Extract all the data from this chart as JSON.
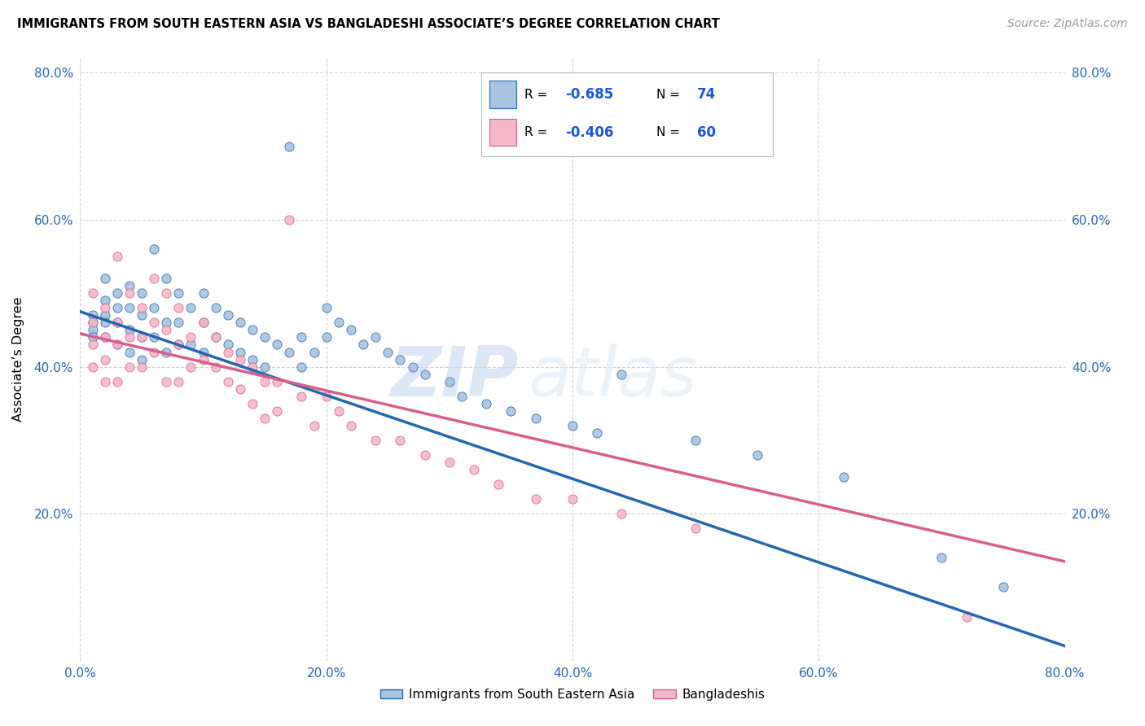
{
  "title": "IMMIGRANTS FROM SOUTH EASTERN ASIA VS BANGLADESHI ASSOCIATE’S DEGREE CORRELATION CHART",
  "source": "Source: ZipAtlas.com",
  "ylabel": "Associate’s Degree",
  "legend_labels": [
    "Immigrants from South Eastern Asia",
    "Bangladeshis"
  ],
  "blue_R": -0.685,
  "blue_N": 74,
  "pink_R": -0.406,
  "pink_N": 60,
  "blue_color": "#a8c4e0",
  "blue_line_color": "#2566b0",
  "pink_color": "#f4b8c8",
  "pink_line_color": "#d95f8a",
  "x_min": 0.0,
  "x_max": 0.8,
  "y_min": 0.0,
  "y_max": 0.82,
  "x_ticks": [
    0.0,
    0.2,
    0.4,
    0.6,
    0.8
  ],
  "x_tick_labels": [
    "0.0%",
    "",
    "",
    "",
    "80.0%"
  ],
  "y_ticks": [
    0.0,
    0.2,
    0.4,
    0.6,
    0.8
  ],
  "y_tick_labels": [
    "",
    "20.0%",
    "40.0%",
    "60.0%",
    "80.0%"
  ],
  "right_y_ticks": [
    0.2,
    0.4,
    0.6,
    0.8
  ],
  "right_y_tick_labels": [
    "20.0%",
    "40.0%",
    "60.0%",
    "80.0%"
  ],
  "watermark_zip": "ZIP",
  "watermark_atlas": "atlas",
  "grid_color": "#cccccc",
  "background_color": "#ffffff",
  "marker_size": 65,
  "legend_R_color": "#1a56db",
  "legend_N_color": "#1a56db",
  "blue_scatter_x": [
    0.01,
    0.01,
    0.01,
    0.01,
    0.02,
    0.02,
    0.02,
    0.02,
    0.02,
    0.03,
    0.03,
    0.03,
    0.03,
    0.04,
    0.04,
    0.04,
    0.04,
    0.05,
    0.05,
    0.05,
    0.05,
    0.06,
    0.06,
    0.06,
    0.07,
    0.07,
    0.07,
    0.08,
    0.08,
    0.08,
    0.09,
    0.09,
    0.1,
    0.1,
    0.1,
    0.11,
    0.11,
    0.12,
    0.12,
    0.13,
    0.13,
    0.14,
    0.14,
    0.15,
    0.15,
    0.16,
    0.17,
    0.17,
    0.18,
    0.18,
    0.19,
    0.2,
    0.2,
    0.21,
    0.22,
    0.23,
    0.24,
    0.25,
    0.26,
    0.27,
    0.28,
    0.3,
    0.31,
    0.33,
    0.35,
    0.37,
    0.4,
    0.42,
    0.44,
    0.5,
    0.55,
    0.62,
    0.7,
    0.75
  ],
  "blue_scatter_y": [
    0.47,
    0.46,
    0.45,
    0.44,
    0.52,
    0.49,
    0.47,
    0.46,
    0.44,
    0.5,
    0.48,
    0.46,
    0.43,
    0.51,
    0.48,
    0.45,
    0.42,
    0.5,
    0.47,
    0.44,
    0.41,
    0.56,
    0.48,
    0.44,
    0.52,
    0.46,
    0.42,
    0.5,
    0.46,
    0.43,
    0.48,
    0.43,
    0.5,
    0.46,
    0.42,
    0.48,
    0.44,
    0.47,
    0.43,
    0.46,
    0.42,
    0.45,
    0.41,
    0.44,
    0.4,
    0.43,
    0.7,
    0.42,
    0.44,
    0.4,
    0.42,
    0.48,
    0.44,
    0.46,
    0.45,
    0.43,
    0.44,
    0.42,
    0.41,
    0.4,
    0.39,
    0.38,
    0.36,
    0.35,
    0.34,
    0.33,
    0.32,
    0.31,
    0.39,
    0.3,
    0.28,
    0.25,
    0.14,
    0.1
  ],
  "pink_scatter_x": [
    0.01,
    0.01,
    0.01,
    0.01,
    0.02,
    0.02,
    0.02,
    0.02,
    0.03,
    0.03,
    0.03,
    0.03,
    0.04,
    0.04,
    0.04,
    0.05,
    0.05,
    0.05,
    0.06,
    0.06,
    0.06,
    0.07,
    0.07,
    0.07,
    0.08,
    0.08,
    0.08,
    0.09,
    0.09,
    0.1,
    0.1,
    0.11,
    0.11,
    0.12,
    0.12,
    0.13,
    0.13,
    0.14,
    0.14,
    0.15,
    0.15,
    0.16,
    0.16,
    0.17,
    0.18,
    0.19,
    0.2,
    0.21,
    0.22,
    0.24,
    0.26,
    0.28,
    0.3,
    0.32,
    0.34,
    0.37,
    0.4,
    0.44,
    0.5,
    0.72
  ],
  "pink_scatter_y": [
    0.5,
    0.46,
    0.43,
    0.4,
    0.48,
    0.44,
    0.41,
    0.38,
    0.55,
    0.46,
    0.43,
    0.38,
    0.5,
    0.44,
    0.4,
    0.48,
    0.44,
    0.4,
    0.52,
    0.46,
    0.42,
    0.5,
    0.45,
    0.38,
    0.48,
    0.43,
    0.38,
    0.44,
    0.4,
    0.46,
    0.41,
    0.44,
    0.4,
    0.42,
    0.38,
    0.41,
    0.37,
    0.4,
    0.35,
    0.38,
    0.33,
    0.38,
    0.34,
    0.6,
    0.36,
    0.32,
    0.36,
    0.34,
    0.32,
    0.3,
    0.3,
    0.28,
    0.27,
    0.26,
    0.24,
    0.22,
    0.22,
    0.2,
    0.18,
    0.06
  ],
  "blue_line_x": [
    0.0,
    0.8
  ],
  "blue_line_y": [
    0.475,
    0.02
  ],
  "pink_line_x": [
    0.0,
    0.8
  ],
  "pink_line_y": [
    0.445,
    0.135
  ]
}
